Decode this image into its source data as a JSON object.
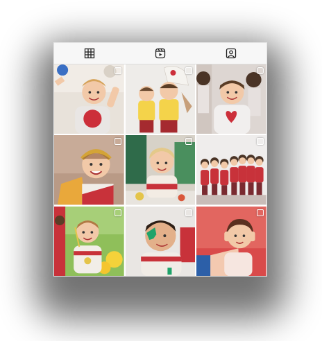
{
  "tabs": [
    {
      "name": "grid-tab",
      "icon": "grid-icon"
    },
    {
      "name": "reels-tab",
      "icon": "reels-icon"
    },
    {
      "name": "tagged-tab",
      "icon": "tagged-person-icon"
    }
  ],
  "grid": {
    "posts": [
      {
        "id": "post-1",
        "badge": "multi",
        "scene": "child-raising-arms-red-heart-shirt"
      },
      {
        "id": "post-2",
        "badge": "multi",
        "scene": "two-toddlers-yellow-shirts"
      },
      {
        "id": "post-3",
        "badge": "reel",
        "scene": "child-red-heart-shirt-smiling"
      },
      {
        "id": "post-4",
        "badge": "multi",
        "scene": "child-golden-laurel-crown"
      },
      {
        "id": "post-5",
        "badge": "multi",
        "scene": "blonde-child-crafting-table"
      },
      {
        "id": "post-6",
        "badge": "multi",
        "scene": "group-of-children-red-uniforms"
      },
      {
        "id": "post-7",
        "badge": "multi",
        "scene": "boy-with-balloons-outdoors"
      },
      {
        "id": "post-8",
        "badge": "multi",
        "scene": "boy-with-green-cutout"
      },
      {
        "id": "post-9",
        "badge": "multi",
        "scene": "girl-covering-ears"
      }
    ]
  },
  "colors": {
    "tab_bar_bg": "#f7f7f7",
    "uniform_red": "#c8323a",
    "skin": "#f2c9a8"
  }
}
